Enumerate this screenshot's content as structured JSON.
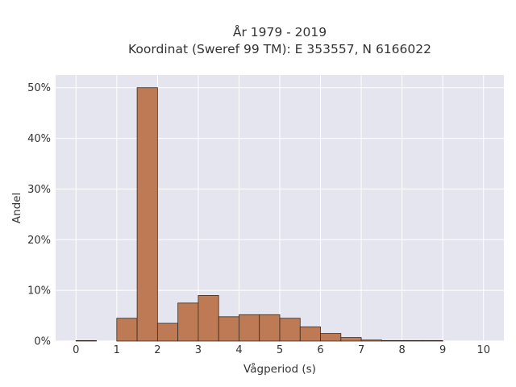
{
  "chart_data": {
    "type": "bar",
    "title_lines": [
      "År 1979 - 2019",
      "Koordinat (Sweref 99 TM): E 353557, N 6166022"
    ],
    "xlabel": "Vågperiod (s)",
    "ylabel": "Andel",
    "xlim": [
      -0.5,
      10.5
    ],
    "ylim": [
      0,
      0.525
    ],
    "x_ticks": [
      0,
      1,
      2,
      3,
      4,
      5,
      6,
      7,
      8,
      9,
      10
    ],
    "y_ticks": [
      0,
      0.1,
      0.2,
      0.3,
      0.4,
      0.5
    ],
    "y_tick_labels": [
      "0%",
      "10%",
      "20%",
      "30%",
      "40%",
      "50%"
    ],
    "bin_width": 0.5,
    "bins": [
      {
        "start": 0.0,
        "value": 0.001
      },
      {
        "start": 0.5,
        "value": 0.0
      },
      {
        "start": 1.0,
        "value": 0.045
      },
      {
        "start": 1.5,
        "value": 0.5
      },
      {
        "start": 2.0,
        "value": 0.035
      },
      {
        "start": 2.5,
        "value": 0.075
      },
      {
        "start": 3.0,
        "value": 0.09
      },
      {
        "start": 3.5,
        "value": 0.048
      },
      {
        "start": 4.0,
        "value": 0.052
      },
      {
        "start": 4.5,
        "value": 0.052
      },
      {
        "start": 5.0,
        "value": 0.045
      },
      {
        "start": 5.5,
        "value": 0.028
      },
      {
        "start": 6.0,
        "value": 0.015
      },
      {
        "start": 6.5,
        "value": 0.007
      },
      {
        "start": 7.0,
        "value": 0.002
      },
      {
        "start": 7.5,
        "value": 0.001
      },
      {
        "start": 8.0,
        "value": 0.001
      },
      {
        "start": 8.5,
        "value": 0.001
      }
    ],
    "colors": {
      "bar_fill": "#bd7a55",
      "bar_stroke": "#3a2a20",
      "plot_bg": "#e5e5f0",
      "grid": "#ffffff"
    },
    "grid": true
  }
}
